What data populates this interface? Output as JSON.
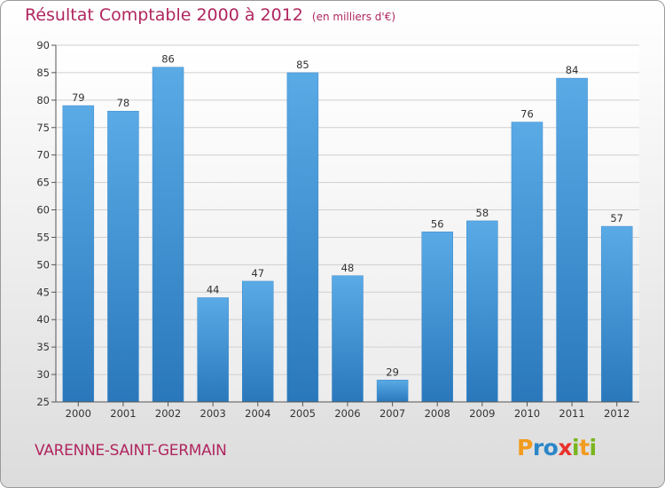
{
  "title": "Résultat Comptable 2000 à 2012",
  "subtitle": "(en milliers d'€)",
  "location": "VARENNE-SAINT-GERMAIN",
  "logo": {
    "text": "Proxiti",
    "letters": [
      "P",
      "r",
      "o",
      "x",
      "i",
      "t",
      "i"
    ],
    "colors": [
      "#f29b1d",
      "#2b86c8",
      "#2b86c8",
      "#e8322d",
      "#7ab51d",
      "#f29b1d",
      "#7ab51d"
    ]
  },
  "colors": {
    "bar": "#4d9fdc",
    "bar_dark": "#2f7fc0",
    "title": "#b0265f"
  },
  "chart_data": {
    "type": "bar",
    "title": "Résultat Comptable 2000 à 2012",
    "ylabel": "(en milliers d'€)",
    "xlabel": "",
    "categories": [
      "2000",
      "2001",
      "2002",
      "2003",
      "2004",
      "2005",
      "2006",
      "2007",
      "2008",
      "2009",
      "2010",
      "2011",
      "2012"
    ],
    "values": [
      79,
      78,
      86,
      44,
      47,
      85,
      48,
      29,
      56,
      58,
      76,
      84,
      57
    ],
    "ylim": [
      25,
      90
    ],
    "yticks": [
      25,
      30,
      35,
      40,
      45,
      50,
      55,
      60,
      65,
      70,
      75,
      80,
      85,
      90
    ],
    "grid": true
  }
}
